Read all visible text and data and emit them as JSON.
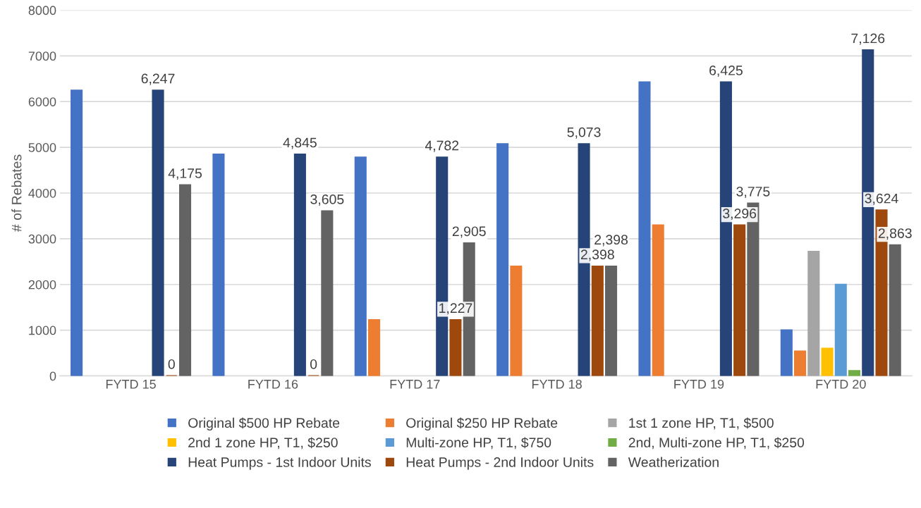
{
  "chart_data": {
    "type": "bar",
    "ylabel": "# of Rebates",
    "categories": [
      "FYTD 15",
      "FYTD 16",
      "FYTD 17",
      "FYTD 18",
      "FYTD 19",
      "FYTD 20"
    ],
    "ylim": [
      0,
      8000
    ],
    "yticks": [
      0,
      1000,
      2000,
      3000,
      4000,
      5000,
      6000,
      7000,
      8000
    ],
    "grid": "y",
    "legend": "bottom",
    "series": [
      {
        "name": "Original $500 HP Rebate",
        "color": "#4472c4",
        "values": [
          6247,
          4845,
          4782,
          5073,
          6425,
          1000
        ]
      },
      {
        "name": "Original $250 HP Rebate",
        "color": "#ed7d31",
        "values": [
          null,
          null,
          1227,
          2398,
          3296,
          540
        ]
      },
      {
        "name": "1st 1 zone HP, T1, $500",
        "color": "#a5a5a5",
        "values": [
          null,
          null,
          null,
          null,
          null,
          2720
        ]
      },
      {
        "name": "2nd 1 zone HP, T1, $250",
        "color": "#ffc000",
        "values": [
          null,
          null,
          null,
          null,
          null,
          600
        ]
      },
      {
        "name": "Multi-zone HP, T1, $750",
        "color": "#5b9bd5",
        "values": [
          null,
          null,
          null,
          null,
          null,
          2000
        ]
      },
      {
        "name": "2nd, Multi-zone HP, T1, $250",
        "color": "#70ad47",
        "values": [
          null,
          null,
          null,
          null,
          null,
          110
        ]
      },
      {
        "name": "Heat Pumps - 1st Indoor Units",
        "color": "#264478",
        "values": [
          6247,
          4845,
          4782,
          5073,
          6425,
          7126
        ],
        "value_labels": [
          "6,247",
          "4,845",
          "4,782",
          "5,073",
          "6,425",
          "7,126"
        ]
      },
      {
        "name": "Heat Pumps - 2nd Indoor Units",
        "color": "#9e480e",
        "values": [
          0,
          0,
          1227,
          2398,
          3296,
          3624
        ],
        "value_labels": [
          "0",
          "0",
          "1,227",
          "2,398",
          "3,296",
          "3,624"
        ]
      },
      {
        "name": "Weatherization",
        "color": "#636363",
        "values": [
          4175,
          3605,
          2905,
          2398,
          3775,
          2863
        ],
        "value_labels": [
          "4,175",
          "3,605",
          "2,905",
          "2,398",
          "3,775",
          "2,863"
        ]
      }
    ]
  }
}
